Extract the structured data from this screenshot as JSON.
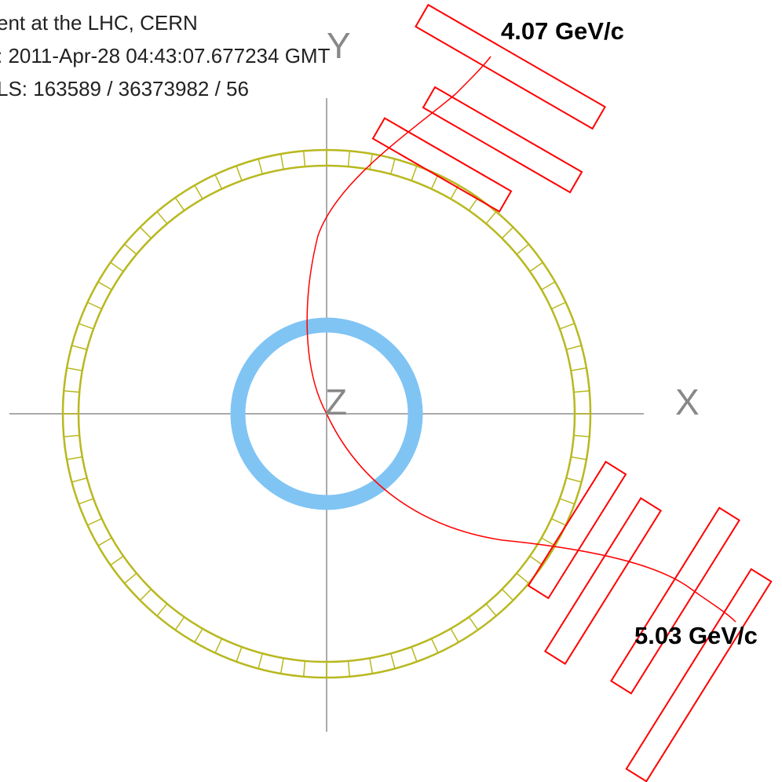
{
  "header": {
    "lines": [
      "ent at the LHC, CERN",
      ": 2011-Apr-28 04:43:07.677234 GMT",
      "LS: 163589 / 36373982 / 56"
    ]
  },
  "axes": {
    "x": "X",
    "y": "Y",
    "z": "Z"
  },
  "tracks": [
    {
      "label": "4.07 GeV/c"
    },
    {
      "label": "5.03 GeV/c"
    }
  ]
}
